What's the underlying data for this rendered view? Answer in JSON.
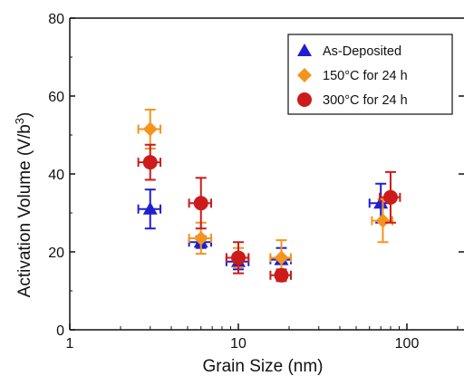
{
  "chart_data": {
    "type": "scatter",
    "xlabel": "Grain Size (nm)",
    "ylabel": "Activation Volume (V/b",
    "ylabel_sup": "3",
    "ylabel_end": ")",
    "x_scale": "log",
    "xlim": [
      1,
      200
    ],
    "ylim": [
      0,
      80
    ],
    "x_ticks": [
      1,
      10,
      100
    ],
    "x_tick_labels": [
      "1",
      "10",
      "100"
    ],
    "y_ticks": [
      0,
      20,
      40,
      60,
      80
    ],
    "y_tick_labels": [
      "0",
      "20",
      "40",
      "60",
      "80"
    ],
    "legend_position": "top-right",
    "grid": false,
    "series": [
      {
        "name": "As-Deposited",
        "marker": "triangle",
        "color": "#1f1fd0",
        "points": [
          {
            "x": 3,
            "y": 31,
            "xerr": 0.45,
            "yerr": 5
          },
          {
            "x": 6,
            "y": 22.5,
            "xerr": 0.9,
            "yerr": 1.5
          },
          {
            "x": 10,
            "y": 17.5,
            "xerr": 1.5,
            "yerr": 2
          },
          {
            "x": 18,
            "y": 18,
            "xerr": 2.5,
            "yerr": 3
          },
          {
            "x": 70,
            "y": 32.5,
            "xerr": 10,
            "yerr": 5
          }
        ]
      },
      {
        "name": "150°C for 24 h",
        "marker": "diamond",
        "color": "#f5941d",
        "points": [
          {
            "x": 3,
            "y": 51.5,
            "xerr": 0.45,
            "yerr": 5
          },
          {
            "x": 6,
            "y": 23.5,
            "xerr": 0.9,
            "yerr": 4
          },
          {
            "x": 10,
            "y": 18.5,
            "xerr": 1.5,
            "yerr": 2.5
          },
          {
            "x": 18,
            "y": 18.5,
            "xerr": 2.5,
            "yerr": 4.5
          },
          {
            "x": 72,
            "y": 28,
            "xerr": 10,
            "yerr": 5.5
          }
        ]
      },
      {
        "name": "300°C for 24 h",
        "marker": "circle",
        "color": "#cc1b1b",
        "points": [
          {
            "x": 3,
            "y": 43,
            "xerr": 0.45,
            "yerr": 4.5
          },
          {
            "x": 6,
            "y": 32.5,
            "xerr": 0.9,
            "yerr": 6.5
          },
          {
            "x": 10,
            "y": 18.5,
            "xerr": 1.5,
            "yerr": 4
          },
          {
            "x": 18,
            "y": 14,
            "xerr": 2.5,
            "yerr": 1.5
          },
          {
            "x": 80,
            "y": 34,
            "xerr": 11,
            "yerr": 6.5
          }
        ]
      }
    ]
  }
}
